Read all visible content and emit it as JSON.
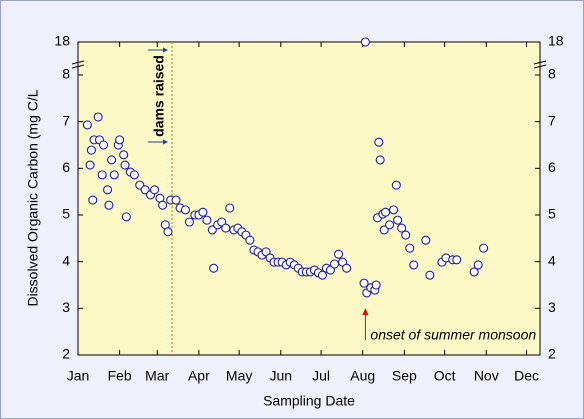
{
  "chart_data": {
    "type": "scatter",
    "x_label": "Sampling Date",
    "y_label": "Dissolved Organic Carbon (mg C/L",
    "xlim": [
      0,
      344
    ],
    "xticks": [
      {
        "value": 0,
        "label": "Jan"
      },
      {
        "value": 31,
        "label": "Feb"
      },
      {
        "value": 59,
        "label": "Mar"
      },
      {
        "value": 90,
        "label": "Apr"
      },
      {
        "value": 120,
        "label": "May"
      },
      {
        "value": 151,
        "label": "Jun"
      },
      {
        "value": 181,
        "label": "Jul"
      },
      {
        "value": 212,
        "label": "Aug"
      },
      {
        "value": 243,
        "label": "Sep"
      },
      {
        "value": 273,
        "label": "Oct"
      },
      {
        "value": 304,
        "label": "Nov"
      },
      {
        "value": 334,
        "label": "Dec"
      }
    ],
    "ylim": [
      2,
      18
    ],
    "yticks": [
      2,
      3,
      4,
      5,
      6,
      7,
      8,
      18
    ],
    "axis_break": true,
    "grid": false,
    "color": "#1c1ca8",
    "x": [
      7,
      10,
      9,
      11,
      12,
      15,
      16,
      19,
      18,
      22,
      23,
      25,
      27,
      30,
      31,
      34,
      35,
      36,
      39,
      42,
      46,
      50,
      54,
      57,
      61,
      63,
      65,
      67,
      69,
      73,
      76,
      80,
      83,
      87,
      90,
      93,
      96,
      100,
      101,
      104,
      107,
      110,
      113,
      116,
      119,
      122,
      125,
      128,
      131,
      134,
      137,
      140,
      143,
      146,
      149,
      152,
      155,
      158,
      161,
      164,
      167,
      170,
      173,
      176,
      179,
      182,
      185,
      188,
      191,
      194,
      197,
      200,
      214,
      213,
      215,
      218,
      221,
      222,
      224,
      225,
      223,
      227,
      229,
      228,
      232,
      235,
      237,
      238,
      241,
      244,
      247,
      250,
      259,
      262,
      271,
      274,
      279,
      282,
      295,
      298,
      302
    ],
    "values": [
      6.93,
      6.39,
      6.07,
      5.32,
      6.61,
      7.1,
      6.61,
      6.5,
      5.86,
      5.54,
      5.21,
      6.18,
      5.86,
      6.5,
      6.61,
      6.29,
      6.07,
      4.96,
      5.92,
      5.86,
      5.64,
      5.54,
      5.43,
      5.54,
      5.36,
      5.21,
      4.79,
      4.64,
      5.32,
      5.32,
      5.15,
      5.11,
      4.85,
      5.0,
      5.0,
      5.06,
      4.89,
      4.68,
      3.86,
      4.79,
      4.85,
      4.72,
      5.15,
      4.68,
      4.72,
      4.64,
      4.57,
      4.46,
      4.25,
      4.21,
      4.14,
      4.21,
      4.08,
      3.99,
      3.99,
      3.99,
      3.93,
      3.99,
      3.93,
      3.86,
      3.78,
      3.78,
      3.78,
      3.82,
      3.76,
      3.71,
      3.86,
      3.82,
      3.95,
      4.16,
      3.99,
      3.86,
      18,
      3.54,
      3.33,
      3.44,
      3.39,
      3.5,
      6.56,
      6.18,
      4.94,
      5.02,
      5.06,
      4.68,
      4.79,
      5.11,
      5.64,
      4.89,
      4.72,
      4.57,
      4.29,
      3.93,
      4.46,
      3.71,
      3.99,
      4.08,
      4.04,
      4.04,
      3.78,
      3.93,
      4.29
    ],
    "annotations": [
      {
        "text": "dams raised",
        "x": 70,
        "color": "#e07000"
      },
      {
        "text": "onset of summer monsoon",
        "x": 214,
        "color": "#d01010"
      }
    ]
  }
}
